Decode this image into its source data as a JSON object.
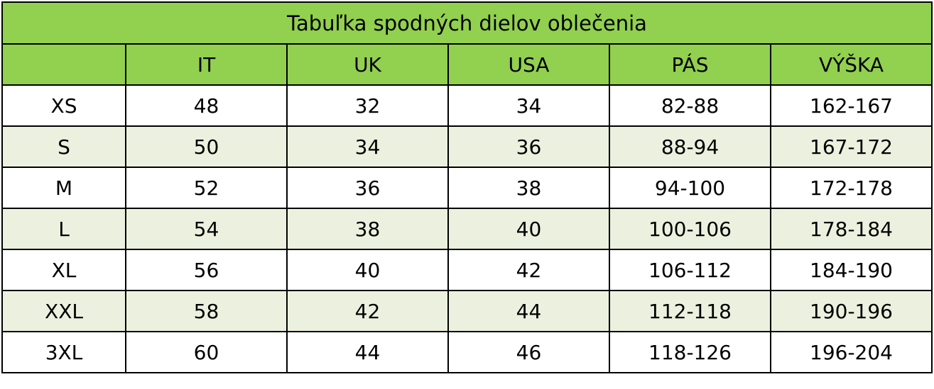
{
  "table": {
    "title": "Tabuľka spodných dielov oblečenia",
    "columns": [
      "IT",
      "UK",
      "USA",
      "PÁS",
      "VÝŠKA"
    ],
    "rows": [
      [
        "XS",
        "48",
        "32",
        "34",
        "82-88",
        "162-167"
      ],
      [
        "S",
        "50",
        "34",
        "36",
        "88-94",
        "167-172"
      ],
      [
        "M",
        "52",
        "36",
        "38",
        "94-100",
        "172-178"
      ],
      [
        "L",
        "54",
        "38",
        "40",
        "100-106",
        "178-184"
      ],
      [
        "XL",
        "56",
        "40",
        "42",
        "106-112",
        "184-190"
      ],
      [
        "XXL",
        "58",
        "42",
        "44",
        "112-118",
        "190-196"
      ],
      [
        "3XL",
        "60",
        "44",
        "46",
        "118-126",
        "196-204"
      ]
    ]
  }
}
